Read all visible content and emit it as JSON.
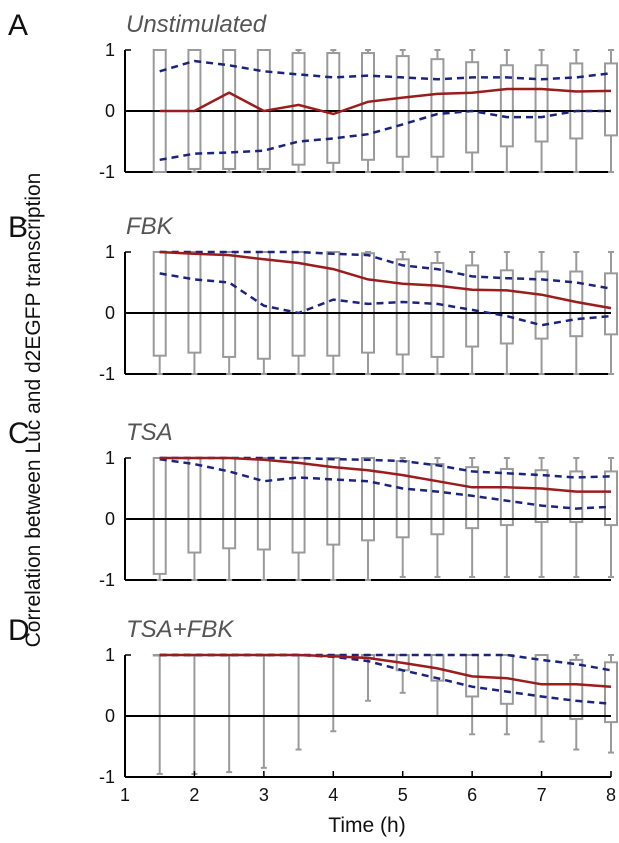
{
  "chart_data": {
    "type": "box",
    "ylabel": "Correlation between Luc and d2EGFP transcription",
    "xlabel": "Time (h)",
    "x_ticks": [
      1,
      2,
      3,
      4,
      5,
      6,
      7,
      8
    ],
    "y_ticks": [
      -1,
      0,
      1
    ],
    "xlim": [
      1,
      8
    ],
    "ylim": [
      -1,
      1
    ],
    "x": [
      1.5,
      2.0,
      2.5,
      3.0,
      3.5,
      4.0,
      4.5,
      5.0,
      5.5,
      6.0,
      6.5,
      7.0,
      7.5,
      8.0
    ],
    "colors": {
      "median": "#9b1c1c",
      "quartile": "#1a237e",
      "box": "#9a9a9a",
      "zero": "#000000"
    },
    "panels": [
      {
        "letter": "A",
        "title": "Unstimulated",
        "median": [
          0,
          0,
          0.3,
          0,
          0.1,
          -0.05,
          0.15,
          0.22,
          0.28,
          0.3,
          0.36,
          0.36,
          0.32,
          0.33
        ],
        "q_upper": [
          0.65,
          0.82,
          0.75,
          0.65,
          0.6,
          0.55,
          0.58,
          0.55,
          0.52,
          0.55,
          0.55,
          0.52,
          0.55,
          0.62
        ],
        "q_lower": [
          -0.8,
          -0.7,
          -0.68,
          -0.65,
          -0.5,
          -0.45,
          -0.38,
          -0.22,
          -0.05,
          0,
          -0.1,
          -0.1,
          0,
          0
        ],
        "box_upper": [
          1,
          1,
          1,
          1,
          0.95,
          0.95,
          0.95,
          0.9,
          0.85,
          0.8,
          0.75,
          0.75,
          0.78,
          0.78
        ],
        "box_lower": [
          -1,
          -0.95,
          -0.95,
          -0.95,
          -0.88,
          -0.85,
          -0.8,
          -0.75,
          -0.75,
          -0.68,
          -0.58,
          -0.5,
          -0.45,
          -0.4
        ],
        "whisker_high": [
          1,
          1,
          1,
          1,
          1,
          1,
          1,
          1,
          1,
          1,
          1,
          1,
          1,
          1
        ],
        "whisker_low": [
          -1,
          -1,
          -1,
          -1,
          -1,
          -1,
          -1,
          -1,
          -1,
          -1,
          -1,
          -1,
          -1,
          -1
        ]
      },
      {
        "letter": "B",
        "title": "FBK",
        "median": [
          1,
          0.97,
          0.95,
          0.88,
          0.82,
          0.72,
          0.55,
          0.48,
          0.45,
          0.38,
          0.37,
          0.3,
          0.18,
          0.08
        ],
        "q_upper": [
          1,
          1,
          1,
          1,
          1,
          0.97,
          0.95,
          0.78,
          0.72,
          0.6,
          0.57,
          0.55,
          0.5,
          0.4
        ],
        "q_lower": [
          0.65,
          0.55,
          0.5,
          0.12,
          0,
          0.22,
          0.15,
          0.18,
          0.15,
          0.05,
          -0.05,
          -0.2,
          -0.1,
          -0.05
        ],
        "box_upper": [
          1,
          1,
          1,
          1,
          1,
          1,
          0.98,
          0.88,
          0.82,
          0.78,
          0.7,
          0.68,
          0.68,
          0.65
        ],
        "box_lower": [
          -0.7,
          -0.65,
          -0.72,
          -0.75,
          -0.7,
          -0.7,
          -0.65,
          -0.68,
          -0.72,
          -0.55,
          -0.5,
          -0.42,
          -0.38,
          -0.35
        ],
        "whisker_high": [
          1,
          1,
          1,
          1,
          1,
          1,
          1,
          1,
          1,
          1,
          1,
          1,
          1,
          1
        ],
        "whisker_low": [
          -1,
          -1,
          -1,
          -1,
          -1,
          -1,
          -1,
          -1,
          -1,
          -1,
          -1,
          -1,
          -1,
          -1
        ]
      },
      {
        "letter": "C",
        "title": "TSA",
        "median": [
          1,
          1,
          1,
          0.97,
          0.92,
          0.85,
          0.8,
          0.72,
          0.62,
          0.52,
          0.52,
          0.5,
          0.45,
          0.45
        ],
        "q_upper": [
          1,
          1,
          1,
          1,
          1,
          0.98,
          0.97,
          0.95,
          0.88,
          0.78,
          0.75,
          0.72,
          0.68,
          0.7
        ],
        "q_lower": [
          0.98,
          0.9,
          0.78,
          0.62,
          0.68,
          0.65,
          0.62,
          0.5,
          0.45,
          0.38,
          0.3,
          0.22,
          0.17,
          0.2
        ],
        "box_upper": [
          1,
          1,
          1,
          1,
          1,
          1,
          1,
          0.95,
          0.9,
          0.85,
          0.82,
          0.8,
          0.78,
          0.78
        ],
        "box_lower": [
          -0.9,
          -0.55,
          -0.48,
          -0.5,
          -0.55,
          -0.42,
          -0.35,
          -0.3,
          -0.25,
          -0.15,
          -0.1,
          -0.05,
          -0.05,
          -0.1
        ],
        "whisker_high": [
          1,
          1,
          1,
          1,
          1,
          1,
          1,
          1,
          1,
          1,
          1,
          1,
          1,
          1
        ],
        "whisker_low": [
          -1,
          -1,
          -1,
          -1,
          -1,
          -1,
          -1,
          -0.95,
          -0.95,
          -0.95,
          -0.95,
          -0.95,
          -0.95,
          -0.95
        ]
      },
      {
        "letter": "D",
        "title": "TSA+FBK",
        "median": [
          1,
          1,
          1,
          1,
          1,
          0.98,
          0.95,
          0.87,
          0.78,
          0.65,
          0.62,
          0.52,
          0.52,
          0.48
        ],
        "q_upper": [
          1,
          1,
          1,
          1,
          1,
          1,
          1,
          1,
          1,
          1,
          1,
          0.92,
          0.85,
          0.75
        ],
        "q_lower": [
          1,
          1,
          1,
          1,
          1,
          0.97,
          0.9,
          0.75,
          0.62,
          0.48,
          0.4,
          0.32,
          0.25,
          0.2
        ],
        "box_upper": [
          1,
          1,
          1,
          1,
          1,
          1,
          1,
          1,
          1,
          1,
          1,
          1,
          0.92,
          0.88
        ],
        "box_lower": [
          1,
          1,
          1,
          1,
          1,
          1,
          0.95,
          0.75,
          0.58,
          0.32,
          0.2,
          0.0,
          -0.05,
          -0.1
        ],
        "whisker_high": [
          1,
          1,
          1,
          1,
          1,
          1,
          1,
          1,
          1,
          1,
          1,
          1,
          1,
          1
        ],
        "whisker_low": [
          -0.95,
          -0.95,
          -0.92,
          -0.85,
          -0.55,
          -0.25,
          0.25,
          0.38,
          0.0,
          -0.3,
          -0.3,
          -0.42,
          -0.55,
          -0.6
        ]
      }
    ]
  }
}
